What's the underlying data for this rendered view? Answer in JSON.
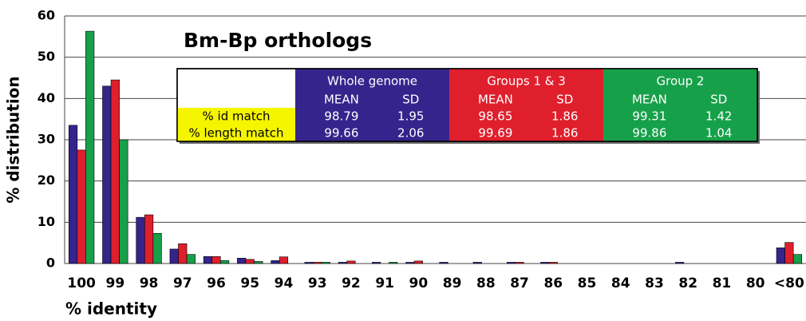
{
  "chart_data": {
    "type": "bar",
    "title": "Bm-Bp orthologs",
    "x_label": "% identity",
    "y_label": "% distribution",
    "categories": [
      "100",
      "99",
      "98",
      "97",
      "96",
      "95",
      "94",
      "93",
      "92",
      "91",
      "90",
      "89",
      "88",
      "87",
      "86",
      "85",
      "84",
      "83",
      "82",
      "81",
      "80",
      "<80"
    ],
    "series": [
      {
        "name": "Whole genome",
        "color": "#35248c",
        "values": [
          33.5,
          43,
          11.2,
          3.5,
          1.7,
          1.3,
          0.7,
          0.3,
          0.3,
          0.3,
          0.3,
          0.3,
          0.3,
          0.3,
          0.3,
          0,
          0,
          0,
          0.3,
          0,
          0,
          3.8
        ]
      },
      {
        "name": "Groups 1 & 3",
        "color": "#e01f2d",
        "values": [
          27.5,
          44.5,
          11.8,
          4.8,
          1.7,
          1.0,
          1.6,
          0.3,
          0.6,
          0,
          0.6,
          0,
          0,
          0.3,
          0.3,
          0,
          0,
          0,
          0,
          0,
          0,
          5.1
        ]
      },
      {
        "name": "Group 2",
        "color": "#17a04a",
        "values": [
          56.3,
          30,
          7.3,
          2.2,
          0.7,
          0.5,
          0,
          0.3,
          0,
          0.3,
          0,
          0,
          0,
          0,
          0,
          0,
          0,
          0,
          0,
          0,
          0,
          2.2
        ]
      }
    ],
    "ylim": [
      0,
      60
    ],
    "yticks": [
      0,
      10,
      20,
      30,
      40,
      50,
      60
    ],
    "grid": true
  },
  "inset_table": {
    "columns": [
      "MEAN",
      "SD",
      "MEAN",
      "SD",
      "MEAN",
      "SD"
    ],
    "rows": [
      {
        "label": "% id match",
        "values": [
          98.79,
          1.95,
          98.65,
          1.86,
          99.31,
          1.42
        ]
      },
      {
        "label": "% length match",
        "values": [
          99.66,
          2.06,
          99.69,
          1.86,
          99.86,
          1.04
        ]
      }
    ]
  }
}
